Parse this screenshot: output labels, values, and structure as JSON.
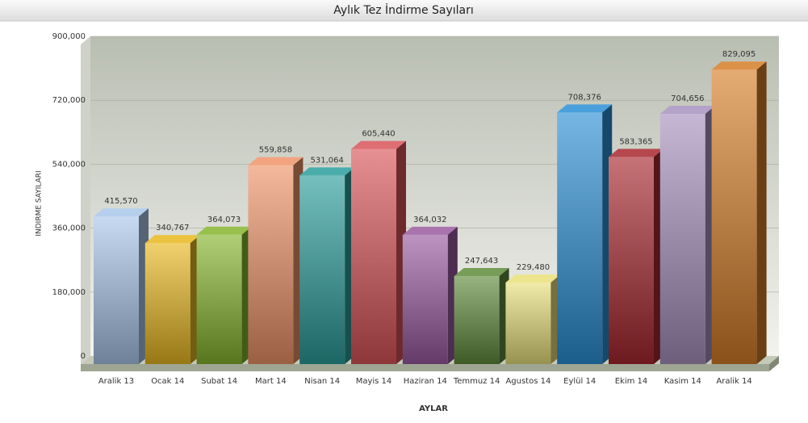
{
  "chart_data": {
    "type": "bar3d",
    "title": "Aylık Tez İndirme Sayıları",
    "x_label": "AYLAR",
    "y_label": "INDIRME SAYILARI",
    "categories": [
      "Aralik 13",
      "Ocak 14",
      "Subat 14",
      "Mart 14",
      "Nisan 14",
      "Mayis 14",
      "Haziran 14",
      "Temmuz 14",
      "Agustos 14",
      "Eylül 14",
      "Ekim 14",
      "Kasim 14",
      "Aralik 14"
    ],
    "values": [
      415570,
      340767,
      364073,
      559858,
      531064,
      605440,
      364032,
      247643,
      229480,
      708376,
      583365,
      704656,
      829095
    ],
    "value_labels": [
      "415,570",
      "340,767",
      "364,073",
      "559,858",
      "531,064",
      "605,440",
      "364,032",
      "247,643",
      "229,480",
      "708,376",
      "583,365",
      "704,656",
      "829,095"
    ],
    "colors": [
      "#a9c6ea",
      "#e8b820",
      "#86b52e",
      "#ee9468",
      "#2b9e9c",
      "#d9545a",
      "#9a5aa0",
      "#5f8c3c",
      "#e9e07a",
      "#2a8fd6",
      "#a82830",
      "#a892bf",
      "#d57d28"
    ],
    "ylim": [
      0,
      900000
    ],
    "yticks": [
      0,
      {
        "value": 180000,
        "label": "180,000"
      },
      {
        "value": 360000,
        "label": "360,000"
      },
      {
        "value": 540000,
        "label": "540,000"
      },
      {
        "value": 720000,
        "label": "720,000"
      },
      {
        "value": 900000,
        "label": "900,000"
      }
    ],
    "grid": true
  }
}
